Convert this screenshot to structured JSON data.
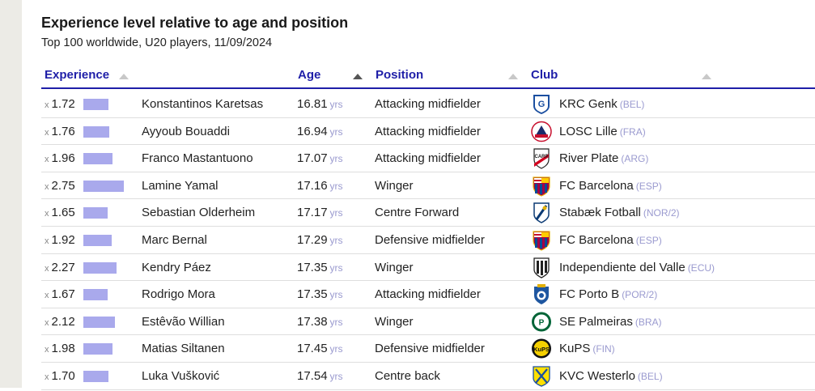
{
  "title": "Experience level relative to age and position",
  "subtitle": "Top 100 worldwide, U20 players, 11/09/2024",
  "columns": {
    "experience": "Experience",
    "age": "Age",
    "position": "Position",
    "club": "Club"
  },
  "multiplier_prefix": "x",
  "age_unit": "yrs",
  "colors": {
    "bar": "#a9a9ec",
    "header": "#1f1fa8"
  },
  "chart_data": {
    "type": "table",
    "title": "Experience level relative to age and position",
    "subtitle": "Top 100 worldwide, U20 players, 11/09/2024",
    "sort": {
      "column": "Age",
      "direction": "ascending"
    },
    "rows": [
      {
        "experience": "1.72",
        "player": "Konstantinos Karetsas",
        "age": "16.81",
        "position": "Attacking midfielder",
        "club": "KRC Genk",
        "country": "(BEL)",
        "crest": "krc-genk-crest-icon"
      },
      {
        "experience": "1.76",
        "player": "Ayyoub Bouaddi",
        "age": "16.94",
        "position": "Attacking midfielder",
        "club": "LOSC Lille",
        "country": "(FRA)",
        "crest": "losc-lille-crest-icon"
      },
      {
        "experience": "1.96",
        "player": "Franco Mastantuono",
        "age": "17.07",
        "position": "Attacking midfielder",
        "club": "River Plate",
        "country": "(ARG)",
        "crest": "river-plate-crest-icon"
      },
      {
        "experience": "2.75",
        "player": "Lamine Yamal",
        "age": "17.16",
        "position": "Winger",
        "club": "FC Barcelona",
        "country": "(ESP)",
        "crest": "fc-barcelona-crest-icon"
      },
      {
        "experience": "1.65",
        "player": "Sebastian Olderheim",
        "age": "17.17",
        "position": "Centre Forward",
        "club": "Stabæk Fotball",
        "country": "(NOR/2)",
        "crest": "stabaek-crest-icon"
      },
      {
        "experience": "1.92",
        "player": "Marc Bernal",
        "age": "17.29",
        "position": "Defensive midfielder",
        "club": "FC Barcelona",
        "country": "(ESP)",
        "crest": "fc-barcelona-crest-icon"
      },
      {
        "experience": "2.27",
        "player": "Kendry Páez",
        "age": "17.35",
        "position": "Winger",
        "club": "Independiente del Valle",
        "country": "(ECU)",
        "crest": "independiente-del-valle-crest-icon"
      },
      {
        "experience": "1.67",
        "player": "Rodrigo Mora",
        "age": "17.35",
        "position": "Attacking midfielder",
        "club": "FC Porto B",
        "country": "(POR/2)",
        "crest": "fc-porto-crest-icon"
      },
      {
        "experience": "2.12",
        "player": "Estêvão Willian",
        "age": "17.38",
        "position": "Winger",
        "club": "SE Palmeiras",
        "country": "(BRA)",
        "crest": "palmeiras-crest-icon"
      },
      {
        "experience": "1.98",
        "player": "Matias Siltanen",
        "age": "17.45",
        "position": "Defensive midfielder",
        "club": "KuPS",
        "country": "(FIN)",
        "crest": "kups-crest-icon"
      },
      {
        "experience": "1.70",
        "player": "Luka Vušković",
        "age": "17.54",
        "position": "Centre back",
        "club": "KVC Westerlo",
        "country": "(BEL)",
        "crest": "kvc-westerlo-crest-icon"
      }
    ]
  }
}
